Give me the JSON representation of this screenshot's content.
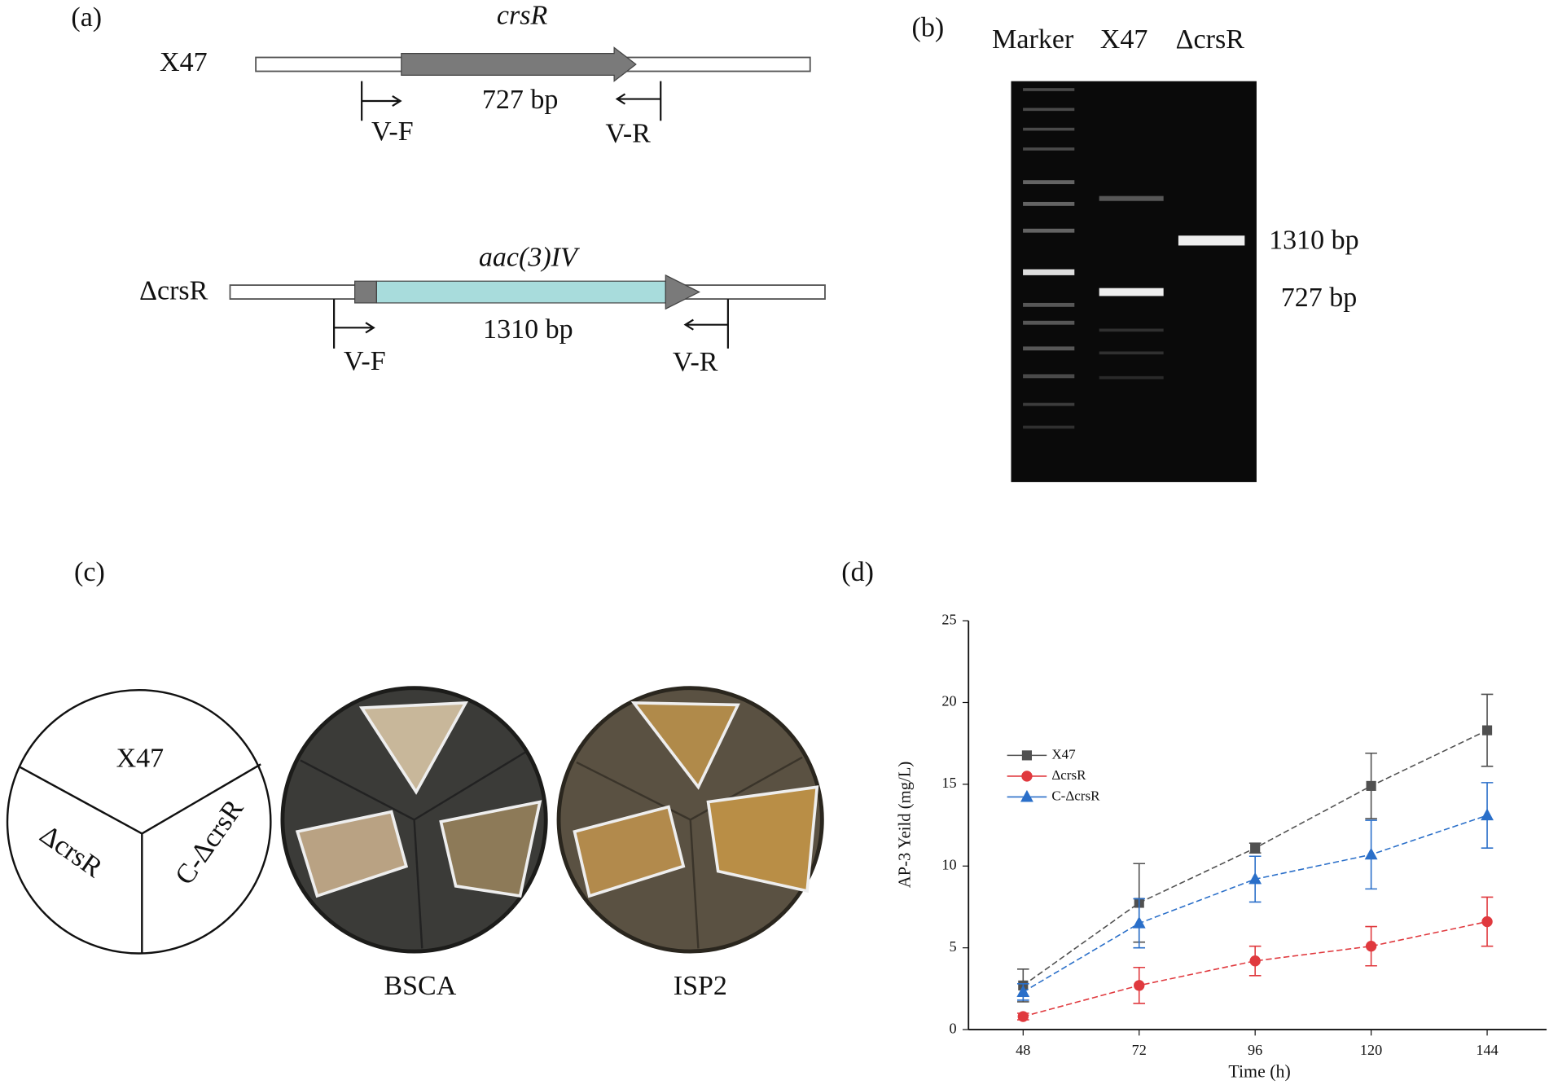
{
  "panel_a": {
    "label": "(a)",
    "wild": {
      "name": "X47",
      "gene": "crsR",
      "size": "727 bp",
      "forward": "V-F",
      "reverse": "V-R"
    },
    "mutant": {
      "name": "ΔcrsR",
      "gene": "aac(3)IV",
      "size": "1310 bp",
      "forward": "V-F",
      "reverse": "V-R"
    }
  },
  "panel_b": {
    "label": "(b)",
    "lanes": [
      "Marker",
      "X47",
      "ΔcrsR"
    ],
    "bands": [
      "1310 bp",
      "727 bp"
    ]
  },
  "panel_c": {
    "label": "(c)",
    "sectors": [
      "X47",
      "ΔcrsR",
      "C-ΔcrsR"
    ],
    "media": [
      "BSCA",
      "ISP2"
    ]
  },
  "chart_data": {
    "type": "line",
    "panel_label": "(d)",
    "x_label": "Time (h)",
    "y_label": "AP-3 Yeild (mg/L)",
    "x": [
      48,
      72,
      96,
      120,
      144
    ],
    "xlim": [
      36.7,
      156.3
    ],
    "xticks": [
      48,
      72,
      96,
      120,
      144
    ],
    "ylim": [
      0,
      25
    ],
    "yticks": [
      0,
      5,
      10,
      15,
      20,
      25
    ],
    "series": [
      {
        "name": "X47",
        "color": "#505050",
        "marker": "square",
        "values": [
          2.7,
          7.75,
          11.1,
          14.9,
          18.3
        ],
        "errors": [
          1.0,
          2.4,
          0.3,
          2.0,
          2.2
        ]
      },
      {
        "name": "ΔcrsR",
        "color": "#e0393e",
        "marker": "circle",
        "values": [
          0.8,
          2.7,
          4.2,
          5.1,
          6.6
        ],
        "errors": [
          0.2,
          1.1,
          0.9,
          1.2,
          1.5
        ]
      },
      {
        "name": "C-ΔcrsR",
        "color": "#2a6fc9",
        "marker": "triangle",
        "values": [
          2.3,
          6.5,
          9.2,
          10.7,
          13.1
        ],
        "errors": [
          0.5,
          1.5,
          1.4,
          2.1,
          2.0
        ]
      }
    ]
  }
}
